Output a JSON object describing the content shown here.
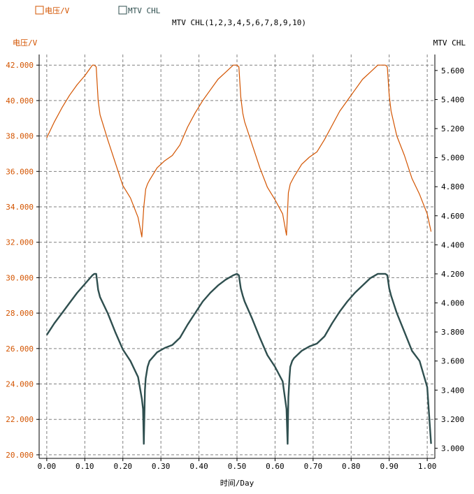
{
  "chart_data": {
    "type": "line",
    "title": "MTV CHL(1,2,3,4,5,6,7,8,9,10)",
    "xlabel": "时间/Day",
    "xlim": [
      -0.02,
      1.02
    ],
    "x_ticks": [
      "0.00",
      "0.10",
      "0.20",
      "0.30",
      "0.40",
      "0.50",
      "0.60",
      "0.70",
      "0.80",
      "0.90",
      "1.00"
    ],
    "y_left": {
      "label": "电压/V",
      "ylim": [
        19.8,
        42.6
      ],
      "ticks": [
        "20.000",
        "22.000",
        "24.000",
        "26.000",
        "28.000",
        "30.000",
        "32.000",
        "34.000",
        "36.000",
        "38.000",
        "40.000",
        "42.000"
      ],
      "color": "#d35400"
    },
    "y_right": {
      "label": "MTV CHL",
      "ylim": [
        2.93,
        5.71
      ],
      "ticks": [
        "3.000",
        "3.200",
        "3.400",
        "3.600",
        "3.800",
        "4.000",
        "4.200",
        "4.400",
        "4.600",
        "4.800",
        "5.000",
        "5.200",
        "5.400",
        "5.600"
      ],
      "color": "#2f4f4f"
    },
    "grid": true,
    "legend": [
      {
        "label": "电压/V",
        "color": "#d35400"
      },
      {
        "label": "MTV CHL",
        "color": "#2f4f4f"
      }
    ],
    "series": [
      {
        "name": "电压/V",
        "axis": "left",
        "color": "#d35400",
        "x": [
          0.0,
          0.02,
          0.04,
          0.06,
          0.08,
          0.1,
          0.12,
          0.125,
          0.13,
          0.135,
          0.14,
          0.16,
          0.18,
          0.2,
          0.22,
          0.24,
          0.25,
          0.255,
          0.26,
          0.265,
          0.27,
          0.29,
          0.31,
          0.33,
          0.35,
          0.37,
          0.39,
          0.41,
          0.43,
          0.45,
          0.47,
          0.49,
          0.5,
          0.505,
          0.51,
          0.515,
          0.52,
          0.54,
          0.56,
          0.58,
          0.6,
          0.62,
          0.63,
          0.635,
          0.64,
          0.645,
          0.65,
          0.67,
          0.69,
          0.71,
          0.73,
          0.75,
          0.77,
          0.79,
          0.81,
          0.83,
          0.85,
          0.87,
          0.88,
          0.89,
          0.895,
          0.9,
          0.905,
          0.92,
          0.94,
          0.96,
          0.98,
          1.0,
          1.01
        ],
        "values": [
          37.9,
          38.8,
          39.6,
          40.3,
          40.9,
          41.4,
          42.0,
          42.0,
          41.9,
          40.0,
          39.2,
          37.8,
          36.5,
          35.2,
          34.5,
          33.4,
          32.3,
          34.0,
          35.0,
          35.3,
          35.5,
          36.2,
          36.6,
          36.9,
          37.5,
          38.5,
          39.3,
          40.0,
          40.6,
          41.2,
          41.6,
          42.0,
          42.0,
          41.9,
          40.2,
          39.3,
          38.8,
          37.5,
          36.2,
          35.1,
          34.4,
          33.6,
          32.4,
          34.8,
          35.3,
          35.5,
          35.7,
          36.4,
          36.8,
          37.1,
          37.8,
          38.6,
          39.4,
          40.0,
          40.6,
          41.2,
          41.6,
          42.0,
          42.0,
          42.0,
          41.9,
          40.3,
          39.4,
          38.0,
          36.9,
          35.6,
          34.7,
          33.6,
          32.6
        ]
      },
      {
        "name": "MTV CHL",
        "axis": "right",
        "color": "#2f4f4f",
        "x": [
          0.0,
          0.02,
          0.04,
          0.06,
          0.08,
          0.1,
          0.12,
          0.125,
          0.13,
          0.135,
          0.14,
          0.16,
          0.18,
          0.2,
          0.22,
          0.24,
          0.25,
          0.253,
          0.255,
          0.258,
          0.26,
          0.265,
          0.27,
          0.29,
          0.31,
          0.33,
          0.35,
          0.37,
          0.39,
          0.41,
          0.43,
          0.45,
          0.47,
          0.49,
          0.5,
          0.505,
          0.51,
          0.515,
          0.52,
          0.54,
          0.56,
          0.58,
          0.6,
          0.62,
          0.63,
          0.633,
          0.635,
          0.638,
          0.64,
          0.645,
          0.65,
          0.67,
          0.69,
          0.71,
          0.73,
          0.75,
          0.77,
          0.79,
          0.81,
          0.83,
          0.85,
          0.87,
          0.88,
          0.89,
          0.895,
          0.9,
          0.905,
          0.92,
          0.94,
          0.96,
          0.98,
          1.0,
          1.01
        ],
        "values": [
          3.78,
          3.86,
          3.93,
          4.0,
          4.07,
          4.13,
          4.19,
          4.2,
          4.2,
          4.09,
          4.04,
          3.93,
          3.8,
          3.68,
          3.6,
          3.49,
          3.34,
          3.27,
          3.03,
          3.4,
          3.48,
          3.56,
          3.6,
          3.66,
          3.69,
          3.71,
          3.76,
          3.85,
          3.93,
          4.01,
          4.07,
          4.12,
          4.16,
          4.19,
          4.2,
          4.19,
          4.1,
          4.05,
          4.01,
          3.89,
          3.76,
          3.64,
          3.56,
          3.46,
          3.27,
          3.03,
          3.35,
          3.49,
          3.56,
          3.6,
          3.62,
          3.67,
          3.7,
          3.72,
          3.77,
          3.86,
          3.94,
          4.01,
          4.07,
          4.12,
          4.17,
          4.2,
          4.2,
          4.2,
          4.19,
          4.1,
          4.05,
          3.93,
          3.8,
          3.67,
          3.6,
          3.42,
          3.03
        ]
      }
    ]
  }
}
